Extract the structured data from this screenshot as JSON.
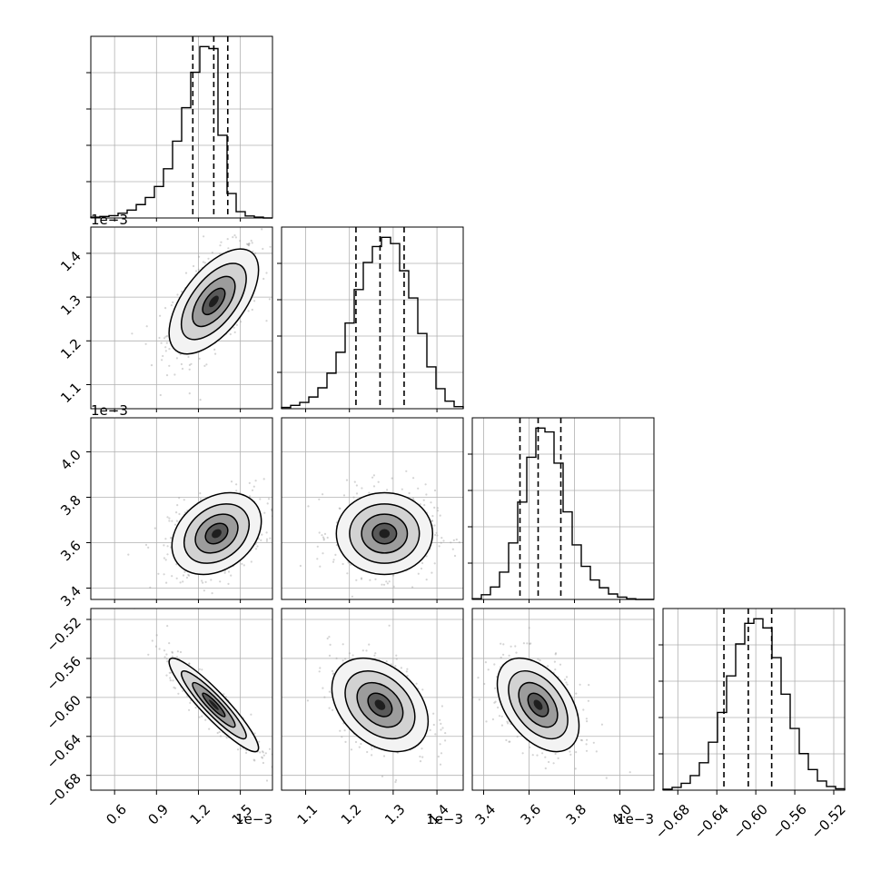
{
  "chart_data": {
    "type": "corner",
    "grid": true,
    "colors": {
      "contour": "#000000",
      "scatter": "#a0a0a0",
      "hist": "#000000",
      "grid": "#b0b0b0"
    },
    "parameters": [
      {
        "range": [
          0.00043,
          0.00173
        ],
        "offset_label": "1e−3",
        "quantiles": [
          0.00116,
          0.00131,
          0.00141
        ],
        "mean": 0.00131,
        "sigma": 0.00015,
        "x_ticks": [
          {
            "value": 0.0006,
            "label": "0.6"
          },
          {
            "value": 0.0009,
            "label": "0.9"
          },
          {
            "value": 0.0012,
            "label": "1.2"
          },
          {
            "value": 0.0015,
            "label": "1.5"
          }
        ],
        "hist_values": [
          0.2,
          0.4,
          0.6,
          1.2,
          2.0,
          3.4,
          5.2,
          8.0,
          12.5,
          19.5,
          28.0,
          37.0,
          43.5,
          43.0,
          21.0,
          6.2,
          1.6,
          0.5,
          0.2,
          0.0
        ]
      },
      {
        "range": [
          0.001045,
          0.00146
        ],
        "offset_label": "1e−3",
        "quantiles": [
          0.001215,
          0.00127,
          0.001325
        ],
        "mean": 0.00127,
        "sigma": 5.5e-05,
        "x_ticks": [
          {
            "value": 0.0011,
            "label": "1.1"
          },
          {
            "value": 0.0012,
            "label": "1.2"
          },
          {
            "value": 0.0013,
            "label": "1.3"
          },
          {
            "value": 0.0014,
            "label": "1.4"
          }
        ],
        "y_ticks": [
          {
            "value": 0.0011,
            "label": "1.1"
          },
          {
            "value": 0.0012,
            "label": "1.2"
          },
          {
            "value": 0.0013,
            "label": "1.3"
          },
          {
            "value": 0.0014,
            "label": "1.4"
          }
        ],
        "hist_values": [
          0.3,
          0.8,
          1.5,
          2.8,
          5.0,
          8.5,
          13.5,
          20.5,
          28.5,
          35.0,
          38.8,
          41.0,
          39.5,
          33.0,
          26.5,
          18.0,
          10.0,
          4.8,
          1.8,
          0.5
        ]
      },
      {
        "range": [
          0.00335,
          0.00415
        ],
        "offset_label": "1e−3",
        "quantiles": [
          0.00356,
          0.00364,
          0.00374
        ],
        "mean": 0.00364,
        "sigma": 9e-05,
        "x_ticks": [
          {
            "value": 0.0034,
            "label": "3.4"
          },
          {
            "value": 0.0036,
            "label": "3.6"
          },
          {
            "value": 0.0038,
            "label": "3.8"
          },
          {
            "value": 0.004,
            "label": "4.0"
          }
        ],
        "y_ticks": [
          {
            "value": 0.0034,
            "label": "3.4"
          },
          {
            "value": 0.0036,
            "label": "3.6"
          },
          {
            "value": 0.0038,
            "label": "3.8"
          },
          {
            "value": 0.004,
            "label": "4.0"
          }
        ],
        "hist_values": [
          0.2,
          1.2,
          3.2,
          7.0,
          14.5,
          25.0,
          36.5,
          44.0,
          43.0,
          35.0,
          22.5,
          14.0,
          8.5,
          5.0,
          3.0,
          1.4,
          0.6,
          0.2,
          0.0,
          0.0
        ]
      },
      {
        "range": [
          -0.6952,
          -0.5088
        ],
        "quantiles": [
          -0.6327,
          -0.6077,
          -0.5837
        ],
        "mean": -0.6077,
        "sigma": 0.024,
        "x_ticks": [
          {
            "value": -0.68,
            "label": "−0.68"
          },
          {
            "value": -0.64,
            "label": "−0.64"
          },
          {
            "value": -0.6,
            "label": "−0.60"
          },
          {
            "value": -0.56,
            "label": "−0.56"
          },
          {
            "value": -0.52,
            "label": "−0.52"
          }
        ],
        "y_ticks": [
          {
            "value": -0.68,
            "label": "−0.68"
          },
          {
            "value": -0.64,
            "label": "−0.64"
          },
          {
            "value": -0.6,
            "label": "−0.60"
          },
          {
            "value": -0.56,
            "label": "−0.56"
          },
          {
            "value": -0.52,
            "label": "−0.52"
          }
        ],
        "hist_values": [
          0.2,
          0.6,
          1.5,
          3.2,
          6.0,
          10.5,
          17.0,
          25.0,
          32.0,
          36.5,
          37.5,
          35.5,
          29.0,
          21.0,
          13.5,
          8.0,
          4.5,
          2.0,
          0.8,
          0.3
        ]
      }
    ],
    "pairs": [
      {
        "row": 1,
        "col": 0,
        "center": [
          0.00131,
          0.00129
        ],
        "corr": 0.6,
        "sx": 0.00016,
        "sy": 6e-05
      },
      {
        "row": 2,
        "col": 0,
        "center": [
          0.00133,
          0.00364
        ],
        "corr": 0.3,
        "sx": 0.00016,
        "sy": 9e-05
      },
      {
        "row": 2,
        "col": 1,
        "center": [
          0.00128,
          0.00364
        ],
        "corr": 0.0,
        "sx": 5.5e-05,
        "sy": 9e-05
      },
      {
        "row": 3,
        "col": 0,
        "center": [
          0.00131,
          -0.6077
        ],
        "corr": -0.92,
        "sx": 0.00016,
        "sy": 0.024
      },
      {
        "row": 3,
        "col": 1,
        "center": [
          0.00127,
          -0.6077
        ],
        "corr": -0.35,
        "sx": 5.5e-05,
        "sy": 0.024
      },
      {
        "row": 3,
        "col": 2,
        "center": [
          0.00364,
          -0.6077
        ],
        "corr": -0.45,
        "sx": 9e-05,
        "sy": 0.024
      }
    ]
  }
}
